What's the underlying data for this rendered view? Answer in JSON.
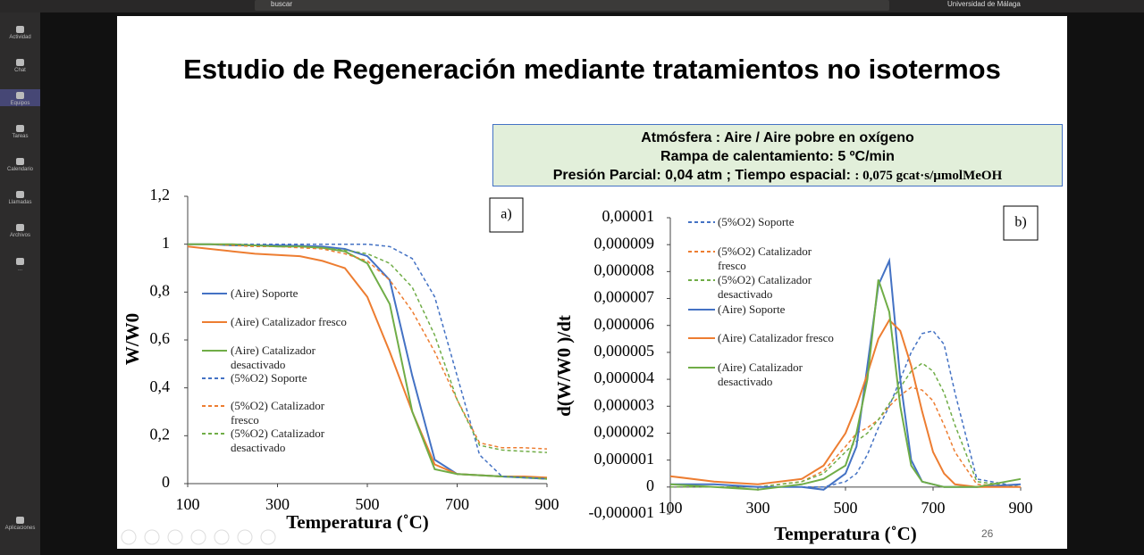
{
  "ui": {
    "search": "buscar",
    "org": "Universidad de Málaga",
    "nav": [
      "Actividad",
      "Chat",
      "Equipos",
      "Tareas",
      "Calendario",
      "Llamadas",
      "Archivos",
      "...",
      "Aplicaciones"
    ]
  },
  "slide": {
    "title": "Estudio de Regeneración mediante tratamientos no isotermos",
    "info": [
      "Atmósfera : Aire / Aire pobre en oxígeno",
      "Rampa de calentamiento: 5 ºC/min"
    ],
    "info_bold": "Presión Parcial: 0,04 atm ; Tiempo espacial: ",
    "info_serif": ": 0,075 gcat·s/µmolMeOH",
    "page": "26"
  },
  "chart_data": [
    {
      "type": "line",
      "annotation": "a)",
      "xlabel": "Temperatura (˚C)",
      "ylabel": "W/W0",
      "x": [
        100,
        150,
        200,
        250,
        300,
        350,
        400,
        450,
        500,
        550,
        600,
        650,
        700,
        750,
        800,
        850,
        900
      ],
      "xlim": [
        100,
        900
      ],
      "xticks": [
        100,
        300,
        500,
        700,
        900
      ],
      "ylim": [
        0,
        1.2
      ],
      "yticks": [
        0,
        {
          "value": 0.2,
          "label": "0,2"
        },
        {
          "value": 0.4,
          "label": "0,4"
        },
        {
          "value": 0.6,
          "label": "0,6"
        },
        {
          "value": 0.8,
          "label": "0,8"
        },
        1,
        {
          "value": 1.2,
          "label": "1,2"
        }
      ],
      "series": [
        {
          "name": "(Aire) Soporte",
          "color": "#4472c4",
          "dashed": false,
          "values": [
            1,
            1,
            0.995,
            0.995,
            0.995,
            0.993,
            0.99,
            0.98,
            0.95,
            0.85,
            0.45,
            0.1,
            0.04,
            0.035,
            0.03,
            0.025,
            0.02
          ]
        },
        {
          "name": "(Aire) Catalizador fresco",
          "color": "#ed7d31",
          "dashed": false,
          "values": [
            0.99,
            0.98,
            0.97,
            0.96,
            0.955,
            0.95,
            0.93,
            0.9,
            0.78,
            0.55,
            0.3,
            0.08,
            0.04,
            0.035,
            0.03,
            0.03,
            0.025
          ]
        },
        {
          "name": "(Aire) Catalizador desactivado",
          "color": "#70ad47",
          "dashed": false,
          "values": [
            1,
            1,
            1,
            0.995,
            0.99,
            0.99,
            0.985,
            0.97,
            0.92,
            0.75,
            0.3,
            0.06,
            0.04,
            0.035,
            0.03,
            0.025,
            0.02
          ]
        },
        {
          "name": "(5%O2) Soporte",
          "color": "#4472c4",
          "dashed": true,
          "values": [
            1,
            1,
            1,
            1,
            1,
            1,
            1,
            1,
            1,
            0.99,
            0.94,
            0.78,
            0.45,
            0.12,
            0.03,
            0.025,
            0.02
          ]
        },
        {
          "name": "(5%O2) Catalizador fresco",
          "color": "#ed7d31",
          "dashed": true,
          "values": [
            1,
            1,
            0.995,
            0.99,
            0.99,
            0.985,
            0.98,
            0.96,
            0.93,
            0.85,
            0.72,
            0.55,
            0.35,
            0.17,
            0.15,
            0.15,
            0.145
          ]
        },
        {
          "name": "(5%O2) Catalizador desactivado",
          "color": "#70ad47",
          "dashed": true,
          "values": [
            1,
            1,
            1,
            0.995,
            0.99,
            0.99,
            0.985,
            0.975,
            0.96,
            0.92,
            0.82,
            0.62,
            0.35,
            0.16,
            0.14,
            0.135,
            0.13
          ]
        }
      ]
    },
    {
      "type": "line",
      "annotation": "b)",
      "xlabel": "Temperatura (˚C)",
      "ylabel": "d(W/W0 )/dt",
      "x": [
        100,
        200,
        300,
        400,
        450,
        500,
        525,
        550,
        575,
        600,
        625,
        650,
        675,
        700,
        725,
        750,
        800,
        900
      ],
      "xlim": [
        100,
        900
      ],
      "xticks": [
        100,
        300,
        500,
        700,
        900
      ],
      "ylim": [
        -1e-06,
        1e-05
      ],
      "yticks": [
        {
          "value": -1e-06,
          "label": "-0,000001"
        },
        0,
        {
          "value": 1e-06,
          "label": "0,000001"
        },
        {
          "value": 2e-06,
          "label": "0,000002"
        },
        {
          "value": 3e-06,
          "label": "0,000003"
        },
        {
          "value": 4e-06,
          "label": "0,000004"
        },
        {
          "value": 5e-06,
          "label": "0,000005"
        },
        {
          "value": 6e-06,
          "label": "0,000006"
        },
        {
          "value": 7e-06,
          "label": "0,000007"
        },
        {
          "value": 8e-06,
          "label": "0,000008"
        },
        {
          "value": 9e-06,
          "label": "0,000009"
        },
        {
          "value": 1e-05,
          "label": "0,00001"
        }
      ],
      "series": [
        {
          "name": "(5%O2) Soporte",
          "color": "#4472c4",
          "dashed": true,
          "values": [
            0,
            0,
            0,
            0,
            0,
            2e-07,
            5e-07,
            1.2e-06,
            2.2e-06,
            3e-06,
            4e-06,
            5e-06,
            5.7e-06,
            5.8e-06,
            5.3e-06,
            3.5e-06,
            3e-07,
            0
          ]
        },
        {
          "name": "(5%O2) Catalizador fresco",
          "color": "#ed7d31",
          "dashed": true,
          "values": [
            0,
            0,
            0,
            2e-07,
            6e-07,
            1.5e-06,
            2e-06,
            2.2e-06,
            2.5e-06,
            3e-06,
            3.4e-06,
            3.7e-06,
            3.6e-06,
            3.2e-06,
            2.3e-06,
            1.3e-06,
            1e-07,
            0
          ]
        },
        {
          "name": "(5%O2) Catalizador desactivado",
          "color": "#70ad47",
          "dashed": true,
          "values": [
            0,
            0,
            0,
            2e-07,
            5e-07,
            1.3e-06,
            1.7e-06,
            2e-06,
            2.5e-06,
            3.1e-06,
            3.7e-06,
            4.3e-06,
            4.6e-06,
            4.3e-06,
            3.5e-06,
            2.3e-06,
            2e-07,
            0
          ]
        },
        {
          "name": "(Aire) Soporte",
          "color": "#4472c4",
          "dashed": false,
          "values": [
            1e-07,
            1e-07,
            0,
            0,
            -1e-07,
            5e-07,
            1.5e-06,
            4.5e-06,
            7.5e-06,
            8.4e-06,
            4e-06,
            1e-06,
            2e-07,
            1e-07,
            0,
            0,
            0,
            1e-07
          ]
        },
        {
          "name": "(Aire) Catalizador fresco",
          "color": "#ed7d31",
          "dashed": false,
          "values": [
            4e-07,
            2e-07,
            1e-07,
            3e-07,
            8e-07,
            2e-06,
            3e-06,
            4.2e-06,
            5.5e-06,
            6.2e-06,
            5.8e-06,
            4.5e-06,
            2.8e-06,
            1.3e-06,
            5e-07,
            1e-07,
            0,
            0
          ]
        },
        {
          "name": "(Aire) Catalizador desactivado",
          "color": "#70ad47",
          "dashed": false,
          "values": [
            1e-07,
            0,
            -1e-07,
            1e-07,
            3e-07,
            8e-07,
            2e-06,
            4e-06,
            7.7e-06,
            6.5e-06,
            3e-06,
            8e-07,
            2e-07,
            1e-07,
            0,
            0,
            0,
            3e-07
          ]
        }
      ]
    }
  ]
}
